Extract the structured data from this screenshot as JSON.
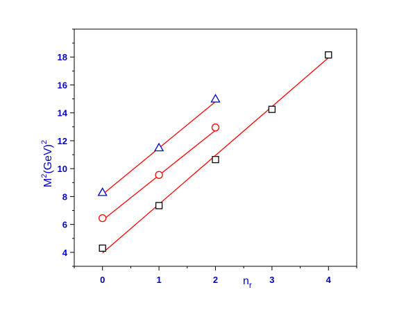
{
  "colors": {
    "axis": "#000000",
    "tick_label": "#0000cc",
    "axis_title": "#0000cc",
    "fit_line": "#ff0000"
  },
  "chart_data": {
    "type": "scatter",
    "title": "",
    "xlabel_main": "n",
    "xlabel_sub": "r",
    "ylabel_main": "M",
    "ylabel_sup": "2",
    "ylabel_mid": "(GeV)",
    "ylabel_sup2": "2",
    "xlim": [
      -0.5,
      4.5
    ],
    "ylim": [
      3,
      20
    ],
    "xticks": [
      0,
      1,
      2,
      3,
      4
    ],
    "xtick_labels": [
      "0",
      "1",
      "2",
      "3",
      "4"
    ],
    "yticks": [
      4,
      6,
      8,
      10,
      12,
      14,
      16,
      18
    ],
    "ytick_labels": [
      "4",
      "6",
      "8",
      "10",
      "12",
      "14",
      "16",
      "18"
    ],
    "y_minor_step": 1,
    "x_minor_step": 0.5,
    "grid": false,
    "series": [
      {
        "marker": "triangle",
        "color": "#0000cc",
        "x": [
          0,
          1,
          2
        ],
        "y": [
          8.3,
          11.5,
          15.0
        ],
        "fit_line": {
          "x": [
            0,
            2
          ],
          "y": [
            8.15,
            14.8
          ],
          "color": "#ff0000"
        }
      },
      {
        "marker": "circle",
        "color": "#ff0000",
        "x": [
          0,
          1,
          2
        ],
        "y": [
          6.45,
          9.55,
          12.95
        ],
        "fit_line": {
          "x": [
            0,
            2
          ],
          "y": [
            6.3,
            12.75
          ],
          "color": "#ff0000"
        }
      },
      {
        "marker": "square",
        "color": "#000000",
        "x": [
          0,
          1,
          2,
          3,
          4
        ],
        "y": [
          4.3,
          7.35,
          10.65,
          14.25,
          18.15
        ],
        "fit_line": {
          "x": [
            0,
            4
          ],
          "y": [
            3.95,
            17.95
          ],
          "color": "#ff0000"
        }
      }
    ]
  }
}
